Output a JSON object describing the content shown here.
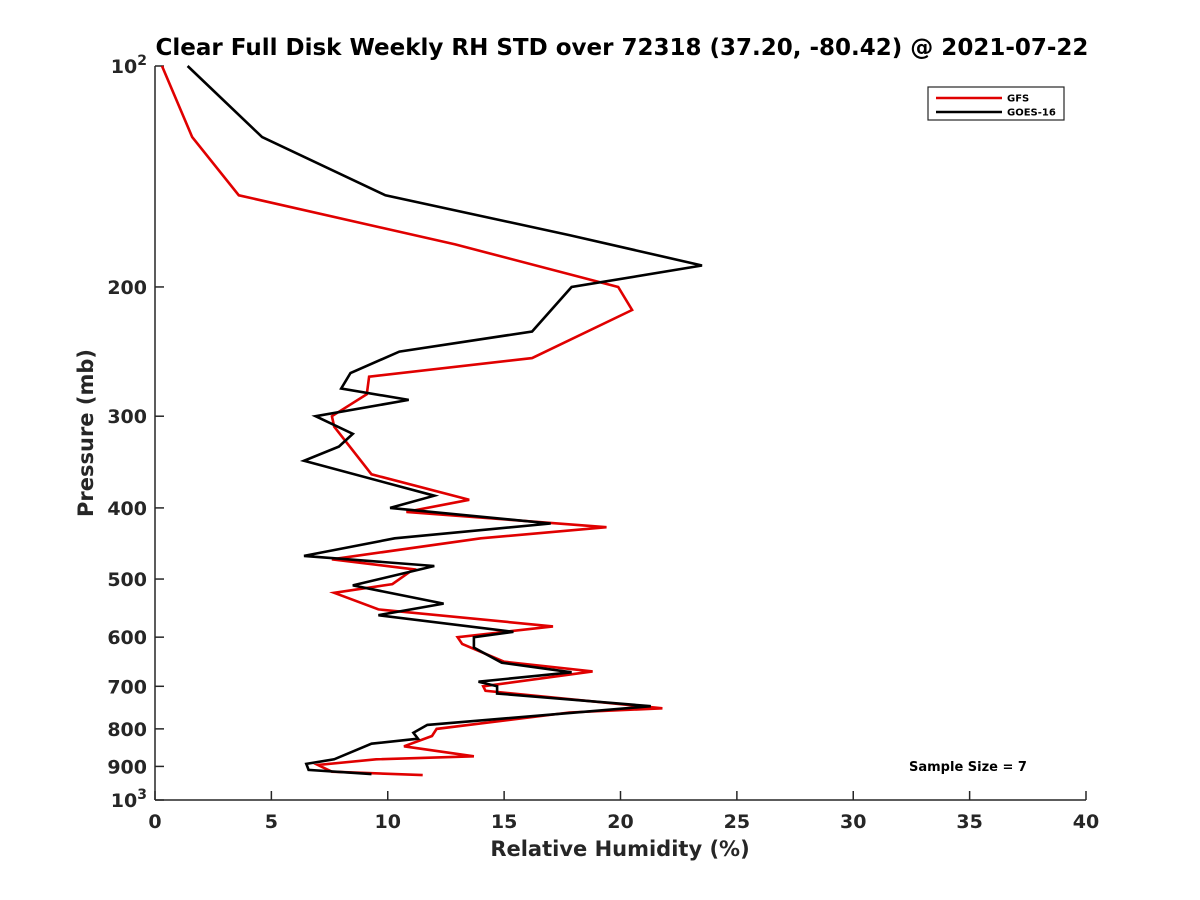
{
  "chart_data": {
    "type": "line",
    "title": "Clear Full Disk Weekly RH STD over 72318 (37.20, -80.42) @ 2021-07-22",
    "xlabel": "Relative Humidity (%)",
    "ylabel": "Pressure (mb)",
    "xlim": [
      0,
      40
    ],
    "ylim": [
      100,
      1000
    ],
    "yscale": "log",
    "y_reversed": true,
    "x_ticks": [
      "0",
      "5",
      "10",
      "15",
      "20",
      "25",
      "30",
      "35",
      "40"
    ],
    "y_ticks": [
      {
        "value": 100,
        "base": "10",
        "exp": "2"
      },
      {
        "value": 200,
        "label": "200"
      },
      {
        "value": 300,
        "label": "300"
      },
      {
        "value": 400,
        "label": "400"
      },
      {
        "value": 500,
        "label": "500"
      },
      {
        "value": 600,
        "label": "600"
      },
      {
        "value": 700,
        "label": "700"
      },
      {
        "value": 800,
        "label": "800"
      },
      {
        "value": 900,
        "label": "900"
      },
      {
        "value": 1000,
        "base": "10",
        "exp": "3"
      }
    ],
    "grid": false,
    "legend_position": "top-right",
    "annotation": "Sample Size = 7",
    "series": [
      {
        "name": "GFS",
        "color": "#e00000",
        "points": [
          [
            0.3,
            100
          ],
          [
            1.6,
            125
          ],
          [
            3.6,
            150
          ],
          [
            12.9,
            175
          ],
          [
            19.9,
            200
          ],
          [
            20.5,
            215
          ],
          [
            16.2,
            250
          ],
          [
            9.2,
            265
          ],
          [
            9.1,
            280
          ],
          [
            7.6,
            300
          ],
          [
            7.7,
            310
          ],
          [
            9.3,
            360
          ],
          [
            13.5,
            390
          ],
          [
            10.8,
            405
          ],
          [
            19.4,
            425
          ],
          [
            14.0,
            440
          ],
          [
            7.6,
            470
          ],
          [
            11.1,
            485
          ],
          [
            10.2,
            508
          ],
          [
            7.7,
            522
          ],
          [
            9.6,
            550
          ],
          [
            17.1,
            580
          ],
          [
            13.0,
            600
          ],
          [
            13.2,
            613
          ],
          [
            15.0,
            648
          ],
          [
            18.8,
            668
          ],
          [
            14.1,
            700
          ],
          [
            14.2,
            710
          ],
          [
            21.8,
            750
          ],
          [
            17.8,
            760
          ],
          [
            12.1,
            800
          ],
          [
            11.9,
            818
          ],
          [
            10.7,
            845
          ],
          [
            13.7,
            872
          ],
          [
            9.5,
            880
          ],
          [
            7.0,
            896
          ],
          [
            7.6,
            915
          ],
          [
            11.5,
            925
          ]
        ]
      },
      {
        "name": "GOES-16",
        "color": "#000000",
        "points": [
          [
            1.4,
            100
          ],
          [
            4.6,
            125
          ],
          [
            9.9,
            150
          ],
          [
            17.8,
            170
          ],
          [
            23.5,
            187
          ],
          [
            17.9,
            200
          ],
          [
            16.2,
            230
          ],
          [
            10.5,
            245
          ],
          [
            8.4,
            262
          ],
          [
            8.0,
            275
          ],
          [
            10.9,
            285
          ],
          [
            6.9,
            300
          ],
          [
            8.5,
            317
          ],
          [
            7.9,
            330
          ],
          [
            6.4,
            345
          ],
          [
            12.0,
            385
          ],
          [
            10.1,
            400
          ],
          [
            17.0,
            420
          ],
          [
            10.3,
            440
          ],
          [
            6.4,
            465
          ],
          [
            12.0,
            480
          ],
          [
            8.5,
            510
          ],
          [
            12.4,
            540
          ],
          [
            9.6,
            560
          ],
          [
            15.4,
            590
          ],
          [
            13.7,
            600
          ],
          [
            13.7,
            620
          ],
          [
            14.9,
            650
          ],
          [
            17.9,
            670
          ],
          [
            13.9,
            690
          ],
          [
            14.7,
            700
          ],
          [
            14.7,
            716
          ],
          [
            21.3,
            745
          ],
          [
            11.7,
            790
          ],
          [
            11.1,
            810
          ],
          [
            11.3,
            825
          ],
          [
            9.3,
            838
          ],
          [
            7.7,
            880
          ],
          [
            6.5,
            893
          ],
          [
            6.6,
            910
          ],
          [
            9.3,
            922
          ]
        ]
      }
    ]
  }
}
